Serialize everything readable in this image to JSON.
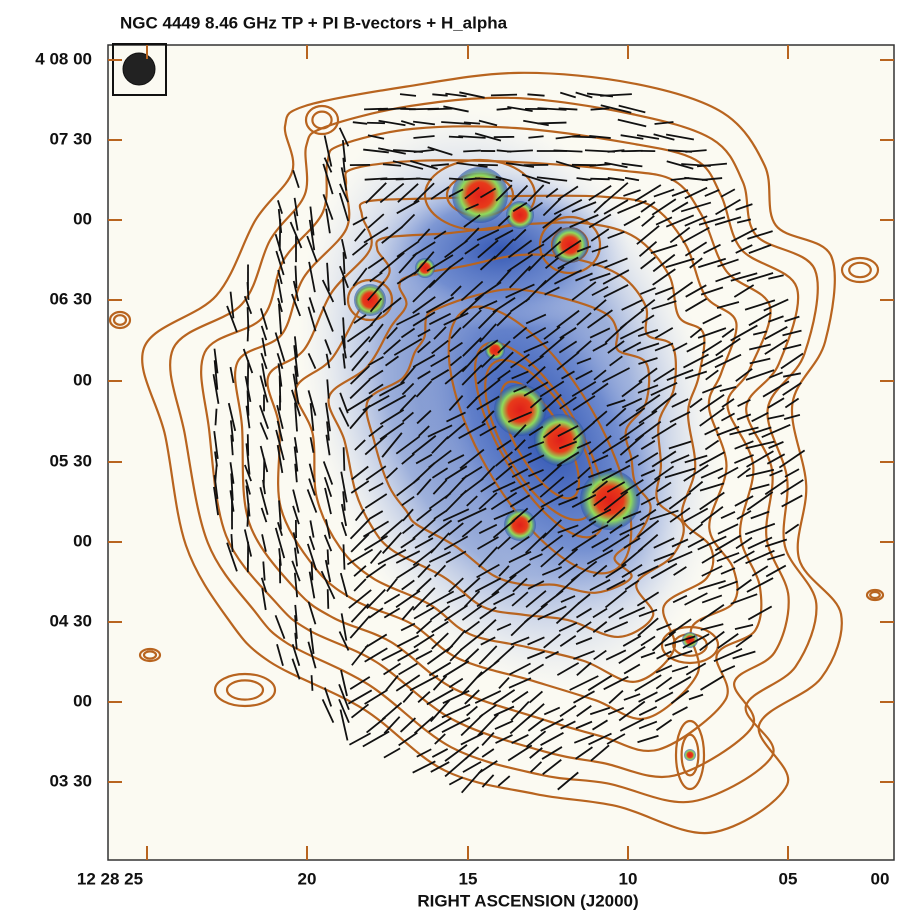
{
  "title": "NGC 4449 8.46 GHz TP + PI B-vectors + H_alpha",
  "y_axis": {
    "tick_labels": [
      "4 08 00",
      "07 30",
      "00",
      "06 30",
      "00",
      "05 30",
      "00",
      "04 30",
      "00",
      "03 30"
    ]
  },
  "x_axis": {
    "tick_labels": [
      "12 28 25",
      "20",
      "15",
      "10",
      "05",
      "00"
    ],
    "label": "RIGHT ASCENSION (J2000)"
  }
}
